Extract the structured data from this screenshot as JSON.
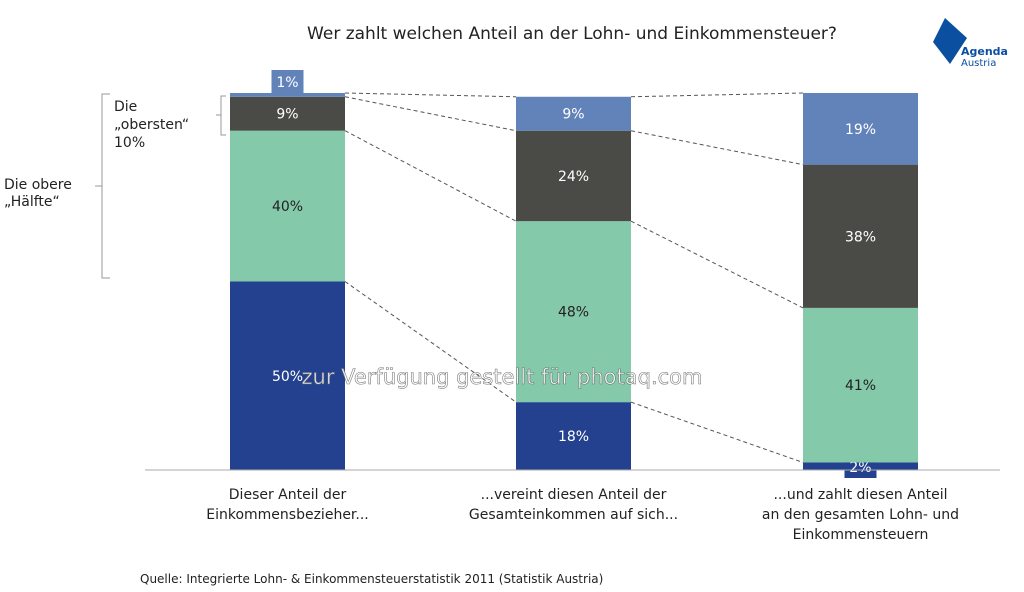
{
  "chart_data": {
    "type": "bar",
    "stacked": true,
    "title": "Wer zahlt welchen Anteil an der Lohn- und Einkommensteuer?",
    "categories": [
      "Dieser Anteil der Einkommensbezieher...",
      "...vereint diesen Anteil der Gesamteinkommen auf sich...",
      "...und zahlt diesen Anteil an den gesamten Lohn- und Einkommensteuern"
    ],
    "category_lines": [
      [
        "Dieser Anteil der",
        "Einkommensbezieher..."
      ],
      [
        "...vereint diesen Anteil der",
        "Gesamteinkommen auf sich..."
      ],
      [
        "...und zahlt diesen Anteil",
        "an den gesamten Lohn- und",
        "Einkommensteuern"
      ]
    ],
    "series": [
      {
        "values": [
          50,
          18,
          2
        ],
        "color": "#23418f"
      },
      {
        "values": [
          40,
          48,
          41
        ],
        "color": "#85c9ab"
      },
      {
        "values": [
          9,
          24,
          38
        ],
        "color": "#4a4a46"
      },
      {
        "values": [
          1,
          9,
          19
        ],
        "color": "#6283b9"
      }
    ],
    "labels": [
      [
        "50%",
        "40%",
        "9%",
        "1%"
      ],
      [
        "18%",
        "48%",
        "24%",
        "9%"
      ],
      [
        "2%",
        "41%",
        "38%",
        "19%"
      ]
    ],
    "ylim": [
      0,
      100
    ],
    "grid": false,
    "annotations": {
      "top10": [
        "Die",
        "„obersten“",
        "10%"
      ],
      "top_half": [
        "Die obere",
        "„Hälfte“"
      ]
    },
    "source": "Quelle: Integrierte Lohn- & Einkommensteuerstatistik 2011 (Statistik Austria)"
  },
  "logo": {
    "line1": "Agenda",
    "line2": "Austria",
    "color": "#0a4fa0"
  },
  "watermark": "zur Verfügung gestellt für photaq.com"
}
